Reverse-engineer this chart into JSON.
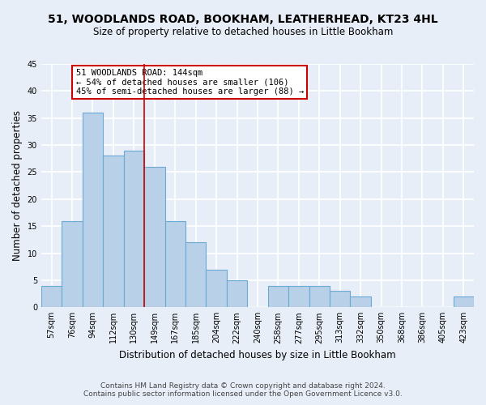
{
  "title": "51, WOODLANDS ROAD, BOOKHAM, LEATHERHEAD, KT23 4HL",
  "subtitle": "Size of property relative to detached houses in Little Bookham",
  "xlabel": "Distribution of detached houses by size in Little Bookham",
  "ylabel": "Number of detached properties",
  "footnote1": "Contains HM Land Registry data © Crown copyright and database right 2024.",
  "footnote2": "Contains public sector information licensed under the Open Government Licence v3.0.",
  "bar_labels": [
    "57sqm",
    "76sqm",
    "94sqm",
    "112sqm",
    "130sqm",
    "149sqm",
    "167sqm",
    "185sqm",
    "204sqm",
    "222sqm",
    "240sqm",
    "258sqm",
    "277sqm",
    "295sqm",
    "313sqm",
    "332sqm",
    "350sqm",
    "368sqm",
    "386sqm",
    "405sqm",
    "423sqm"
  ],
  "bar_values": [
    4,
    16,
    36,
    28,
    29,
    26,
    16,
    12,
    7,
    5,
    0,
    4,
    4,
    4,
    3,
    2,
    0,
    0,
    0,
    0,
    2
  ],
  "bar_color": "#b8d0e8",
  "bar_edge_color": "#6aaad4",
  "ylim": [
    0,
    45
  ],
  "yticks": [
    0,
    5,
    10,
    15,
    20,
    25,
    30,
    35,
    40,
    45
  ],
  "vline_color": "#cc0000",
  "annotation_box_text1": "51 WOODLANDS ROAD: 144sqm",
  "annotation_box_text2": "← 54% of detached houses are smaller (106)",
  "annotation_box_text3": "45% of semi-detached houses are larger (88) →",
  "annotation_box_edgecolor": "#cc0000",
  "annotation_box_facecolor": "#ffffff",
  "bg_color": "#e8eef8",
  "plot_bg_color": "#e8eef8",
  "grid_color": "#ffffff",
  "title_fontsize": 10,
  "subtitle_fontsize": 8.5,
  "annotation_fontsize": 7.5,
  "tick_fontsize": 7,
  "xlabel_fontsize": 8.5,
  "ylabel_fontsize": 8.5,
  "footnote_fontsize": 6.5
}
